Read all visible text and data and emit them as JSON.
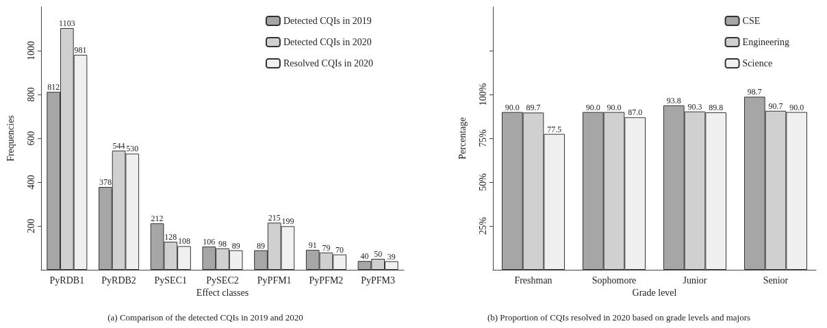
{
  "chart_data": [
    {
      "type": "bar",
      "title": "(a) Comparison of the detected CQIs in 2019 and 2020",
      "xlabel": "Effect classes",
      "ylabel": "Frequencies",
      "categories": [
        "PyRDB1",
        "PyRDB2",
        "PySEC1",
        "PySEC2",
        "PyPFM1",
        "PyPFM2",
        "PyPFM3"
      ],
      "series": [
        {
          "name": "Detected CQIs in 2019",
          "color": "#a6a6a6",
          "values": [
            812,
            378,
            212,
            106,
            89,
            91,
            40
          ]
        },
        {
          "name": "Detected CQIs in 2020",
          "color": "#d0d0d0",
          "values": [
            1103,
            544,
            128,
            98,
            215,
            79,
            50
          ]
        },
        {
          "name": "Resolved CQIs in 2020",
          "color": "#f0f0f0",
          "values": [
            981,
            530,
            108,
            89,
            199,
            70,
            39
          ]
        }
      ],
      "ylim": [
        0,
        1200
      ],
      "yticks": [
        200,
        400,
        600,
        800,
        1000
      ],
      "grid": false,
      "legend": "top right",
      "data_labels": true
    },
    {
      "type": "bar",
      "title": "(b) Proportion of CQIs resolved in 2020 based on grade levels and majors",
      "xlabel": "Grade level",
      "ylabel": "Percentage",
      "categories": [
        "Freshman",
        "Sophomore",
        "Junior",
        "Senior"
      ],
      "series": [
        {
          "name": "CSE",
          "color": "#a6a6a6",
          "values": [
            90.0,
            90.0,
            93.8,
            98.7
          ],
          "value_labels": [
            "90.0",
            "90.0",
            "93.8",
            "98.7"
          ]
        },
        {
          "name": "Engineering",
          "color": "#d0d0d0",
          "values": [
            89.7,
            90.0,
            90.3,
            90.7
          ],
          "value_labels": [
            "89.7",
            "90.0",
            "90.3",
            "90.7"
          ]
        },
        {
          "name": "Science",
          "color": "#f0f0f0",
          "values": [
            77.5,
            87.0,
            89.8,
            90.0
          ],
          "value_labels": [
            "77.5",
            "87.0",
            "89.8",
            "90.0"
          ]
        }
      ],
      "ylim": [
        0,
        150
      ],
      "yticks": [
        {
          "value": 25,
          "label": "25%"
        },
        {
          "value": 50,
          "label": "50%"
        },
        {
          "value": 75,
          "label": "75%"
        },
        {
          "value": 100,
          "label": "100%"
        },
        {
          "value": 125,
          "label": null
        }
      ],
      "grid": false,
      "legend": "top right"
    }
  ]
}
